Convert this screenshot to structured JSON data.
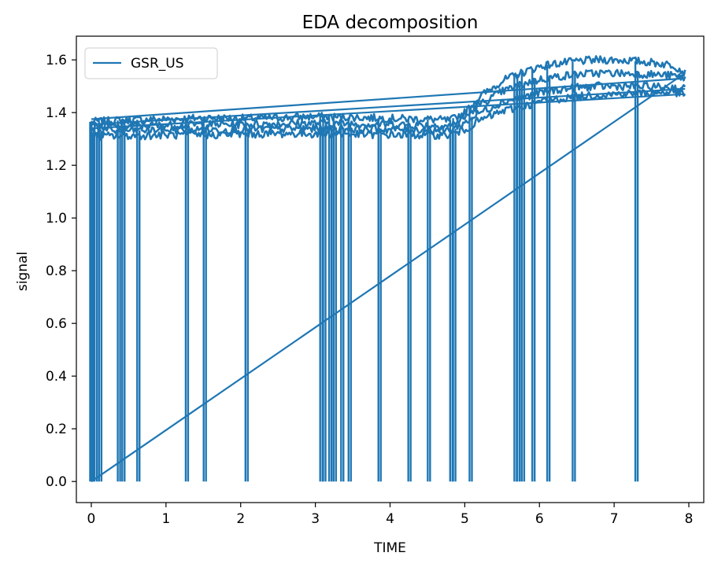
{
  "chart_data": {
    "type": "line",
    "title": "EDA decomposition",
    "xlabel": "TIME",
    "ylabel": "signal",
    "xlim": [
      -0.2,
      8.2
    ],
    "ylim": [
      -0.08,
      1.69
    ],
    "x_ticks": [
      "0",
      "1",
      "2",
      "3",
      "4",
      "5",
      "6",
      "7",
      "8"
    ],
    "y_ticks": [
      "0.0",
      "0.2",
      "0.4",
      "0.6",
      "0.8",
      "1.0",
      "1.2",
      "1.4",
      "1.6"
    ],
    "grid": false,
    "legend_position": "top-left",
    "colors": {
      "series": "#1f77b4",
      "axes": "#000000",
      "legend_border": "#cccccc"
    },
    "series": [
      {
        "name": "GSR_US",
        "drops": [
          0.0,
          0.02,
          0.06,
          0.12,
          0.37,
          0.43,
          0.63,
          1.28,
          1.52,
          2.08,
          3.08,
          3.12,
          3.2,
          3.26,
          3.36,
          3.46,
          3.86,
          4.26,
          4.52,
          4.82,
          4.86,
          5.08,
          5.68,
          5.72,
          5.78,
          5.92,
          6.12,
          6.46,
          7.3
        ],
        "traces": [
          {
            "x": [
              0.0,
              0.5,
              1.0,
              1.5,
              2.0,
              2.5,
              3.0,
              3.5,
              4.0,
              4.5,
              4.8,
              5.0,
              5.2,
              5.5,
              5.8,
              6.0,
              6.2,
              6.5,
              6.8,
              7.0,
              7.2,
              7.5,
              7.8,
              7.95
            ],
            "y": [
              1.365,
              1.372,
              1.375,
              1.38,
              1.378,
              1.38,
              1.385,
              1.382,
              1.378,
              1.375,
              1.37,
              1.4,
              1.46,
              1.52,
              1.555,
              1.575,
              1.585,
              1.595,
              1.6,
              1.6,
              1.598,
              1.59,
              1.58,
              1.55
            ]
          },
          {
            "x": [
              0.0,
              0.5,
              1.0,
              1.5,
              2.0,
              2.5,
              3.0,
              3.5,
              4.0,
              4.5,
              4.8,
              5.0,
              5.2,
              5.5,
              5.8,
              6.0,
              6.2,
              6.5,
              6.8,
              7.0,
              7.2,
              7.5,
              7.8,
              7.95
            ],
            "y": [
              1.345,
              1.35,
              1.352,
              1.355,
              1.355,
              1.358,
              1.36,
              1.358,
              1.355,
              1.352,
              1.35,
              1.38,
              1.43,
              1.48,
              1.51,
              1.525,
              1.535,
              1.545,
              1.55,
              1.55,
              1.548,
              1.545,
              1.54,
              1.53
            ]
          },
          {
            "x": [
              0.0,
              0.5,
              1.0,
              1.5,
              2.0,
              2.5,
              3.0,
              3.5,
              4.0,
              4.5,
              4.8,
              5.0,
              5.2,
              5.5,
              5.8,
              6.0,
              6.2,
              6.5,
              6.8,
              7.0,
              7.2,
              7.5,
              7.8,
              7.95
            ],
            "y": [
              1.33,
              1.332,
              1.335,
              1.335,
              1.335,
              1.338,
              1.34,
              1.338,
              1.336,
              1.335,
              1.333,
              1.36,
              1.4,
              1.44,
              1.46,
              1.475,
              1.485,
              1.495,
              1.5,
              1.5,
              1.5,
              1.498,
              1.495,
              1.49
            ]
          },
          {
            "x": [
              0.0,
              0.5,
              1.0,
              1.5,
              2.0,
              2.5,
              3.0,
              3.5,
              4.0,
              4.5,
              4.8,
              5.0,
              5.2,
              5.5,
              5.8,
              6.0,
              6.2,
              6.5,
              6.8,
              7.0,
              7.2,
              7.5,
              7.8,
              7.95
            ],
            "y": [
              1.31,
              1.312,
              1.315,
              1.315,
              1.318,
              1.32,
              1.32,
              1.318,
              1.316,
              1.315,
              1.315,
              1.335,
              1.37,
              1.405,
              1.425,
              1.44,
              1.45,
              1.46,
              1.468,
              1.47,
              1.472,
              1.475,
              1.478,
              1.47
            ]
          }
        ],
        "returns": [
          {
            "x": [
              7.95,
              0.0
            ],
            "y": [
              1.53,
              1.375
            ]
          },
          {
            "x": [
              7.95,
              0.0
            ],
            "y": [
              1.49,
              1.355
            ]
          },
          {
            "x": [
              7.95,
              0.0
            ],
            "y": [
              1.47,
              1.34
            ]
          },
          {
            "x": [
              7.95,
              0.0
            ],
            "y": [
              1.55,
              0.0
            ]
          }
        ]
      }
    ]
  }
}
